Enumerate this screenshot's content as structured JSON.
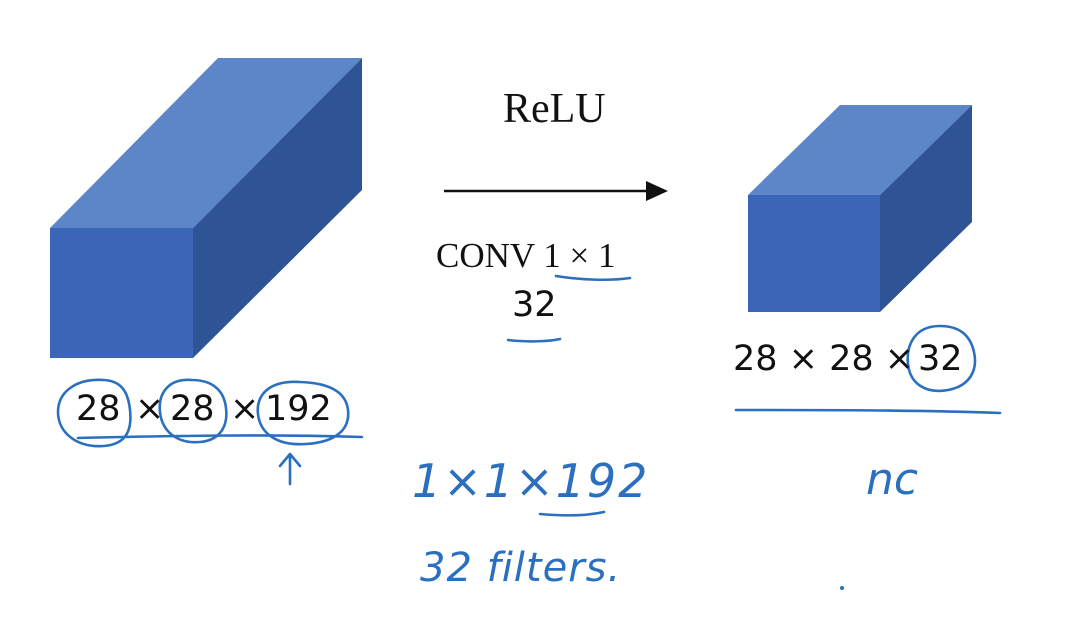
{
  "colors": {
    "cube_front": "#3b66b8",
    "cube_top": "#5d86c8",
    "cube_side": "#2e5496",
    "ink": "#2b6fbf",
    "text": "#111111"
  },
  "operation": {
    "activation": "ReLU",
    "conv_label": "CONV 1 × 1",
    "filter_count": "32"
  },
  "input_volume": {
    "height": "28",
    "times1": "×",
    "width": "28",
    "times2": "×",
    "channels": "192"
  },
  "output_volume": {
    "label": "28 × 28 ×",
    "channels": "32"
  },
  "handwritten": {
    "filter_shape": "1×1×192",
    "filters": "32 filters.",
    "nc": "nc"
  }
}
